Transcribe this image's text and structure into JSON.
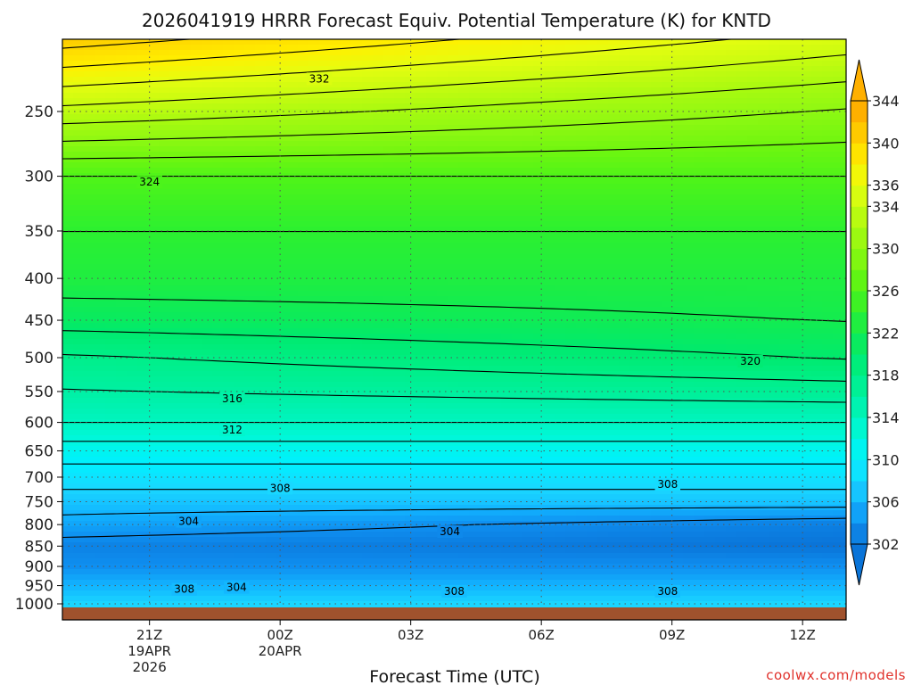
{
  "chart_data": {
    "type": "heatmap",
    "title": "2026041919 HRRR Forecast Equiv. Potential Temperature (K) for KNTD",
    "xlabel": "Forecast Time (UTC)",
    "ylabel": "",
    "credit": "coolwx.com/models",
    "x_ticks": [
      {
        "label": "21Z",
        "sub1": "19APR",
        "sub2": "2026",
        "hour": 21
      },
      {
        "label": "00Z",
        "sub1": "20APR",
        "sub2": "",
        "hour": 24
      },
      {
        "label": "03Z",
        "sub1": "",
        "sub2": "",
        "hour": 27
      },
      {
        "label": "06Z",
        "sub1": "",
        "sub2": "",
        "hour": 30
      },
      {
        "label": "09Z",
        "sub1": "",
        "sub2": "",
        "hour": 33
      },
      {
        "label": "12Z",
        "sub1": "",
        "sub2": "",
        "hour": 36
      }
    ],
    "xlim": [
      19,
      37
    ],
    "y_ticks": [
      250,
      300,
      350,
      400,
      450,
      500,
      550,
      600,
      650,
      700,
      750,
      800,
      850,
      900,
      950,
      1000
    ],
    "ylim_hPa": [
      1020,
      200
    ],
    "y_scale": "log",
    "colorbar": {
      "levels": [
        302,
        304,
        306,
        308,
        310,
        312,
        314,
        316,
        318,
        320,
        322,
        324,
        326,
        328,
        330,
        332,
        334,
        336,
        338,
        340,
        342,
        344
      ],
      "labels": [
        "302",
        "306",
        "310",
        "314",
        "318",
        "322",
        "326",
        "330",
        "334",
        "336",
        "340",
        "344"
      ],
      "extend": "both"
    },
    "profile_levels_hPa": [
      200,
      250,
      300,
      350,
      400,
      450,
      500,
      550,
      600,
      650,
      700,
      750,
      800,
      850,
      900,
      950,
      1000
    ],
    "profile_start_hour_21Z": [
      341,
      333,
      326,
      324,
      323,
      321,
      318,
      316,
      314,
      311,
      309,
      307,
      305,
      303,
      304,
      306,
      308
    ],
    "profile_end_hour_12Z": [
      336,
      330,
      326,
      324,
      323,
      322,
      320,
      317,
      314,
      311,
      309,
      307,
      303,
      302,
      304,
      306,
      308
    ],
    "contour_labels": [
      {
        "text": "332",
        "hour": 24.9,
        "p": 228
      },
      {
        "text": "324",
        "hour": 21.0,
        "p": 305
      },
      {
        "text": "320",
        "hour": 34.8,
        "p": 505
      },
      {
        "text": "316",
        "hour": 22.9,
        "p": 561
      },
      {
        "text": "312",
        "hour": 22.9,
        "p": 613
      },
      {
        "text": "308",
        "hour": 24.0,
        "p": 722
      },
      {
        "text": "308",
        "hour": 32.9,
        "p": 714
      },
      {
        "text": "304",
        "hour": 21.9,
        "p": 793
      },
      {
        "text": "304",
        "hour": 27.9,
        "p": 816
      },
      {
        "text": "308",
        "hour": 21.8,
        "p": 960
      },
      {
        "text": "304",
        "hour": 23.0,
        "p": 955
      },
      {
        "text": "308",
        "hour": 28.0,
        "p": 965
      },
      {
        "text": "308",
        "hour": 32.9,
        "p": 965
      }
    ],
    "terrain_color": "#a0522d"
  }
}
